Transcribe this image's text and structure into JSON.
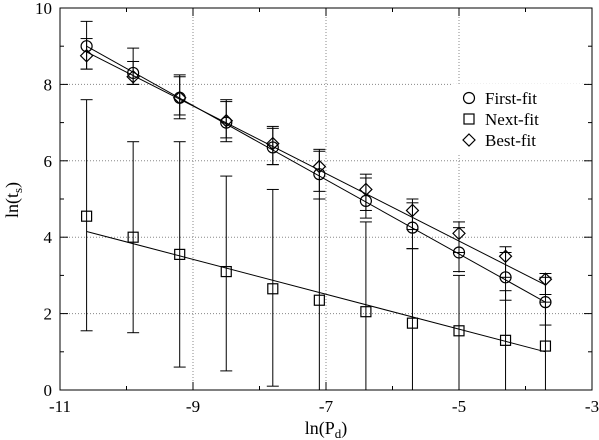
{
  "chart_data": {
    "type": "scatter",
    "title": "",
    "xlim": [
      -11,
      -3
    ],
    "ylim": [
      0,
      10
    ],
    "x_ticks": [
      -11,
      -9,
      -7,
      -5,
      -3
    ],
    "x_tick_labels": [
      "-11",
      "-9",
      "-7",
      "-5",
      "-3"
    ],
    "y_ticks": [
      0,
      2,
      4,
      6,
      8,
      10
    ],
    "y_tick_labels": [
      "0",
      "2",
      "4",
      "6",
      "8",
      "10"
    ],
    "grid": "dotted",
    "legend_position": "top-right",
    "x": [
      -10.6,
      -9.9,
      -9.2,
      -8.5,
      -7.8,
      -7.1,
      -6.4,
      -5.7,
      -5.0,
      -4.3,
      -3.7
    ],
    "series": [
      {
        "name": "First-fit",
        "marker": "circle",
        "values": [
          9.0,
          8.3,
          7.65,
          7.0,
          6.35,
          5.65,
          4.95,
          4.25,
          3.6,
          2.95,
          2.3
        ],
        "err_low": [
          8.4,
          8.0,
          7.1,
          6.5,
          5.9,
          5.0,
          4.5,
          3.7,
          3.1,
          2.35,
          1.7
        ],
        "err_high": [
          9.65,
          8.95,
          8.25,
          7.55,
          6.9,
          6.25,
          5.55,
          4.9,
          4.25,
          3.6,
          2.95
        ],
        "fit": [
          [
            -10.6,
            9.0
          ],
          [
            -3.7,
            2.3
          ]
        ]
      },
      {
        "name": "Next-fit",
        "marker": "square",
        "values": [
          4.55,
          4.0,
          3.55,
          3.1,
          2.65,
          2.35,
          2.05,
          1.75,
          1.55,
          1.3,
          1.15
        ],
        "err_low": [
          1.55,
          1.5,
          0.6,
          0.5,
          0.1,
          0.0,
          0.0,
          0.0,
          0.0,
          0.0,
          0.0
        ],
        "err_high": [
          7.6,
          6.5,
          6.5,
          5.6,
          5.25,
          5.0,
          4.4,
          3.7,
          3.0,
          2.6,
          2.3
        ],
        "fit": [
          [
            -10.6,
            4.15
          ],
          [
            -3.7,
            1.0
          ]
        ]
      },
      {
        "name": "Best-fit",
        "marker": "diamond",
        "values": [
          8.75,
          8.2,
          7.65,
          7.05,
          6.45,
          5.85,
          5.25,
          4.7,
          4.1,
          3.5,
          2.9
        ],
        "err_low": [
          8.4,
          8.0,
          7.2,
          6.6,
          5.9,
          5.2,
          4.7,
          4.2,
          3.6,
          2.95,
          2.5
        ],
        "err_high": [
          9.2,
          8.6,
          8.2,
          7.6,
          6.85,
          6.3,
          5.65,
          5.0,
          4.4,
          3.75,
          3.05
        ],
        "fit": [
          [
            -10.6,
            8.85
          ],
          [
            -3.7,
            2.75
          ]
        ]
      }
    ],
    "xlabel": {
      "main": "ln(P",
      "sub": "d",
      "end": ")"
    },
    "ylabel": {
      "main": "ln(t",
      "sub": "s",
      "end": ")"
    }
  }
}
